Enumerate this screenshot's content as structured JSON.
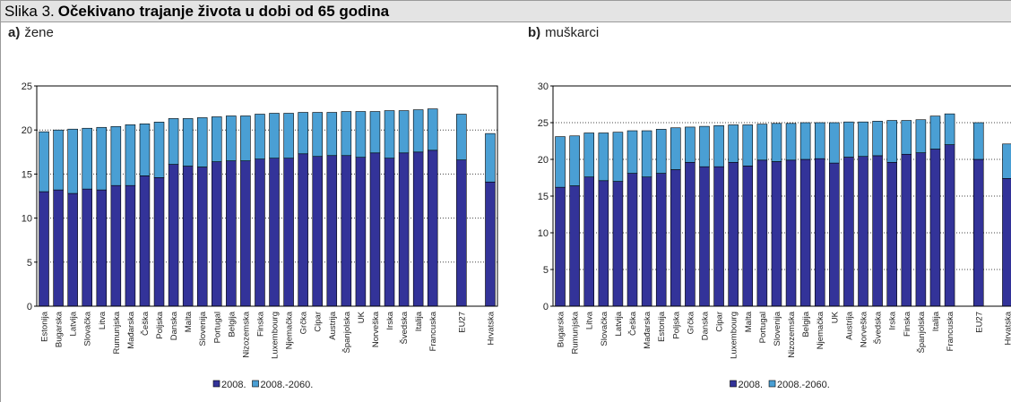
{
  "figure_label": "Slika 3.",
  "title": "Očekivano trajanje života u dobi od 65 godina",
  "chart_data": [
    {
      "type": "stacked_bar",
      "panel": "a)",
      "title": "žene",
      "categories": [
        "Estonija",
        "Bugarska",
        "Latvija",
        "Slovačka",
        "Litva",
        "Rumunjska",
        "Mađarska",
        "Češka",
        "Poljska",
        "Danska",
        "Malta",
        "Slovenija",
        "Portugal",
        "Belgija",
        "Nizozemska",
        "Finska",
        "Luxembourg",
        "Njemačka",
        "Grčka",
        "Cipar",
        "Austrija",
        "Španjolska",
        "UK",
        "Norveška",
        "Irska",
        "Švedska",
        "Italija",
        "Francuska",
        null,
        "EU27",
        null,
        "Hrvatska"
      ],
      "series": [
        {
          "name": "2008.",
          "color": "#333399",
          "values": [
            13.0,
            13.2,
            12.8,
            13.3,
            13.2,
            13.7,
            13.7,
            14.8,
            14.6,
            16.1,
            15.9,
            15.8,
            16.4,
            16.5,
            16.5,
            16.7,
            16.8,
            16.8,
            17.3,
            17.0,
            17.1,
            17.1,
            16.9,
            17.4,
            16.8,
            17.4,
            17.5,
            17.7,
            null,
            16.6,
            null,
            14.1
          ]
        },
        {
          "name": "2008.-2060.",
          "color": "#4a9fd4",
          "values": [
            6.8,
            6.8,
            7.3,
            6.9,
            7.1,
            6.7,
            6.9,
            5.9,
            6.3,
            5.2,
            5.4,
            5.6,
            5.1,
            5.1,
            5.1,
            5.1,
            5.1,
            5.1,
            4.7,
            5.0,
            4.9,
            5.0,
            5.2,
            4.7,
            5.4,
            4.8,
            4.8,
            4.7,
            null,
            5.2,
            null,
            5.5
          ]
        }
      ],
      "ylim": [
        0,
        25
      ],
      "yticks": [
        0,
        5,
        10,
        15,
        20,
        25
      ],
      "grid": true
    },
    {
      "type": "stacked_bar",
      "panel": "b)",
      "title": "muškarci",
      "categories": [
        "Bugarska",
        "Rumunjska",
        "Litva",
        "Slovačka",
        "Latvija",
        "Češka",
        "Mađarska",
        "Estonija",
        "Poljska",
        "Grčka",
        "Danska",
        "Cipar",
        "Luxembourg",
        "Malta",
        "Portugal",
        "Slovenija",
        "Nizozemska",
        "Belgija",
        "Njemačka",
        "UK",
        "Austrija",
        "Norveška",
        "Švedska",
        "Irska",
        "Finska",
        "Španjolska",
        "Italija",
        "Francuska",
        null,
        "EU27",
        null,
        "Hrvatska"
      ],
      "series": [
        {
          "name": "2008.",
          "color": "#333399",
          "values": [
            16.2,
            16.4,
            17.6,
            17.1,
            17.0,
            18.1,
            17.6,
            18.1,
            18.6,
            19.6,
            19.0,
            19.0,
            19.6,
            19.1,
            19.9,
            19.7,
            19.9,
            20.0,
            20.1,
            19.5,
            20.3,
            20.4,
            20.5,
            19.6,
            20.7,
            20.9,
            21.4,
            22.0,
            null,
            20.0,
            null,
            17.4
          ]
        },
        {
          "name": "2008.-2060.",
          "color": "#4a9fd4",
          "values": [
            6.9,
            6.8,
            6.0,
            6.5,
            6.7,
            5.8,
            6.3,
            6.0,
            5.7,
            4.8,
            5.5,
            5.6,
            5.1,
            5.6,
            4.9,
            5.2,
            5.0,
            5.0,
            4.9,
            5.5,
            4.8,
            4.7,
            4.7,
            5.7,
            4.6,
            4.5,
            4.5,
            4.2,
            null,
            5.0,
            null,
            4.7
          ]
        }
      ],
      "ylim": [
        0,
        30
      ],
      "yticks": [
        0,
        5,
        10,
        15,
        20,
        25,
        30
      ],
      "grid": true
    }
  ]
}
